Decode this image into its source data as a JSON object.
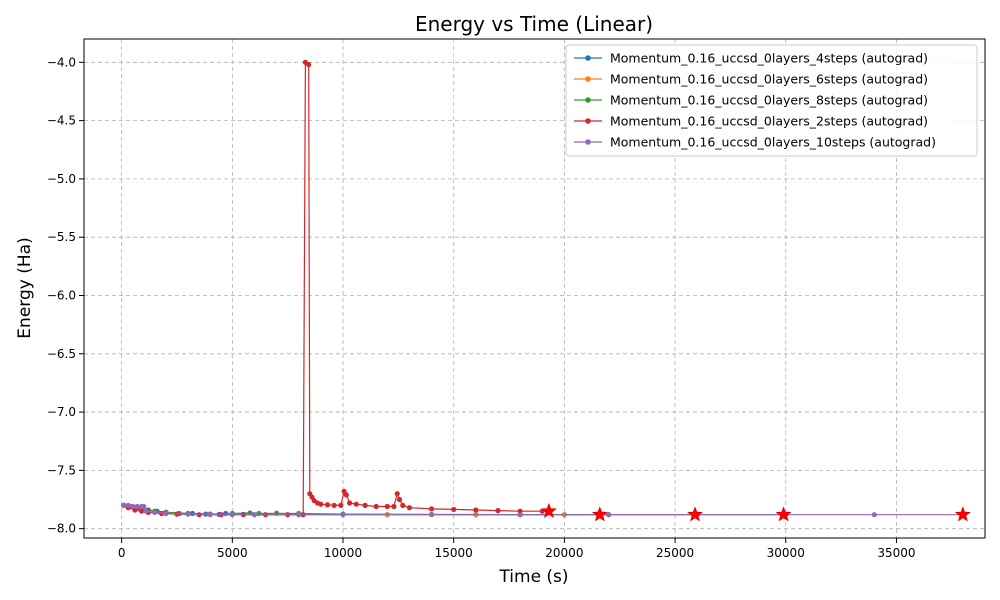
{
  "chart_data": {
    "type": "line",
    "title": "Energy vs Time (Linear)",
    "xlabel": "Time (s)",
    "ylabel": "Energy (Ha)",
    "xlim": [
      -1700,
      39000
    ],
    "ylim": [
      -8.08,
      -3.8
    ],
    "xticks": [
      0,
      5000,
      10000,
      15000,
      20000,
      25000,
      30000,
      35000
    ],
    "xtick_labels": [
      "0",
      "5000",
      "10000",
      "15000",
      "20000",
      "25000",
      "30000",
      "35000"
    ],
    "yticks": [
      -4.0,
      -4.5,
      -5.0,
      -5.5,
      -6.0,
      -6.5,
      -7.0,
      -7.5,
      -8.0
    ],
    "ytick_labels": [
      "−4.0",
      "−4.5",
      "−5.0",
      "−5.5",
      "−6.0",
      "−6.5",
      "−7.0",
      "−7.5",
      "−8.0"
    ],
    "grid": true,
    "legend_position": "top-right",
    "series": [
      {
        "name": "Momentum_0.16_uccsd_0layers_4steps (autograd)",
        "color": "#1f77b4",
        "x": [
          100,
          400,
          800,
          1200,
          1600,
          2000,
          2600,
          3200,
          3800,
          4400,
          4700,
          5000,
          5500,
          6000,
          8000,
          12000,
          16000,
          20000,
          21600
        ],
        "y": [
          -7.8,
          -7.81,
          -7.82,
          -7.84,
          -7.85,
          -7.86,
          -7.87,
          -7.87,
          -7.875,
          -7.878,
          -7.87,
          -7.875,
          -7.878,
          -7.88,
          -7.88,
          -7.88,
          -7.88,
          -7.88,
          -7.88
        ],
        "best_x": 21600,
        "best_y": -7.88
      },
      {
        "name": "Momentum_0.16_uccsd_0layers_6steps (autograd)",
        "color": "#ff7f0e",
        "x": [
          100,
          500,
          1000,
          1500,
          2000,
          3000,
          4000,
          5000,
          6000,
          8000,
          12000,
          16000,
          20000,
          25900
        ],
        "y": [
          -7.8,
          -7.81,
          -7.83,
          -7.85,
          -7.86,
          -7.87,
          -7.875,
          -7.878,
          -7.88,
          -7.88,
          -7.88,
          -7.88,
          -7.88,
          -7.88
        ],
        "best_x": 25900,
        "best_y": -7.88
      },
      {
        "name": "Momentum_0.16_uccsd_0layers_8steps (autograd)",
        "color": "#2ca02c",
        "x": [
          100,
          500,
          1000,
          1500,
          2000,
          3000,
          4000,
          5000,
          5800,
          6200,
          7000,
          8000,
          10000,
          14000,
          18000,
          22000,
          26000,
          29900
        ],
        "y": [
          -7.8,
          -7.81,
          -7.83,
          -7.85,
          -7.86,
          -7.87,
          -7.875,
          -7.87,
          -7.865,
          -7.87,
          -7.868,
          -7.87,
          -7.875,
          -7.878,
          -7.88,
          -7.88,
          -7.88,
          -7.88
        ],
        "best_x": 29900,
        "best_y": -7.88
      },
      {
        "name": "Momentum_0.16_uccsd_0layers_2steps (autograd)",
        "color": "#d62728",
        "x": [
          100,
          300,
          600,
          900,
          1200,
          1800,
          2500,
          3500,
          4500,
          5500,
          6500,
          7500,
          8200,
          8300,
          8450,
          8500,
          8600,
          8700,
          8850,
          9000,
          9300,
          9600,
          9900,
          10050,
          10150,
          10300,
          10600,
          11000,
          11500,
          12000,
          12300,
          12450,
          12550,
          12700,
          13000,
          14000,
          15000,
          16000,
          17000,
          18000,
          19000,
          19300
        ],
        "y": [
          -7.8,
          -7.82,
          -7.84,
          -7.85,
          -7.86,
          -7.87,
          -7.875,
          -7.88,
          -7.88,
          -7.88,
          -7.88,
          -7.88,
          -7.88,
          -4.0,
          -4.02,
          -7.7,
          -7.73,
          -7.76,
          -7.78,
          -7.79,
          -7.795,
          -7.8,
          -7.8,
          -7.68,
          -7.71,
          -7.78,
          -7.79,
          -7.8,
          -7.81,
          -7.81,
          -7.81,
          -7.7,
          -7.75,
          -7.8,
          -7.82,
          -7.83,
          -7.835,
          -7.84,
          -7.845,
          -7.85,
          -7.85,
          -7.85
        ],
        "best_x": 19300,
        "best_y": -7.85
      },
      {
        "name": "Momentum_0.16_uccsd_0layers_10steps (autograd)",
        "color": "#9467bd",
        "x": [
          100,
          300,
          500,
          700,
          900,
          1000,
          1100,
          1500,
          2000,
          3000,
          4000,
          5000,
          6000,
          8000,
          10000,
          14000,
          18000,
          22000,
          26000,
          30000,
          34000,
          38000
        ],
        "y": [
          -7.8,
          -7.8,
          -7.81,
          -7.81,
          -7.81,
          -7.81,
          -7.85,
          -7.86,
          -7.87,
          -7.875,
          -7.88,
          -7.88,
          -7.88,
          -7.88,
          -7.88,
          -7.88,
          -7.88,
          -7.88,
          -7.88,
          -7.88,
          -7.88,
          -7.88
        ],
        "best_x": 38000,
        "best_y": -7.88
      }
    ]
  }
}
